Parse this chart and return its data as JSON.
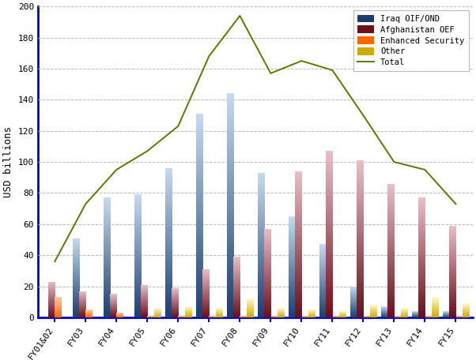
{
  "categories": [
    "FY01&02",
    "FY03",
    "FY04",
    "FY05",
    "FY06",
    "FY07",
    "FY08",
    "FY09",
    "FY10",
    "FY11",
    "FY12",
    "FY13",
    "FY14",
    "FY15"
  ],
  "iraq": [
    0,
    51,
    77,
    79,
    96,
    131,
    144,
    93,
    65,
    47,
    20,
    7,
    4,
    4
  ],
  "afghanistan": [
    23,
    17,
    15,
    21,
    19,
    31,
    39,
    57,
    94,
    107,
    101,
    86,
    77,
    59
  ],
  "enhanced_security": [
    13,
    5,
    3,
    1,
    1,
    1,
    1,
    1,
    1,
    1,
    1,
    1,
    1,
    1
  ],
  "other": [
    0,
    0,
    0,
    6,
    7,
    6,
    12,
    6,
    5,
    4,
    8,
    6,
    13,
    9
  ],
  "total": [
    36,
    73,
    95,
    107,
    123,
    168,
    194,
    157,
    165,
    159,
    130,
    100,
    95,
    73
  ],
  "iraq_top": "#1a3f6f",
  "iraq_bottom": "#c8daf0",
  "afghanistan_top": "#6b0f1a",
  "afghanistan_bottom": "#e8c0c8",
  "enhanced_top": "#ff6600",
  "enhanced_bottom": "#ffccaa",
  "other_top": "#ccaa00",
  "other_bottom": "#fffacc",
  "total_color": "#5a7a00",
  "axis_color": "#0000cc",
  "grid_color": "#bbbbbb",
  "bg_color": "#ffffff",
  "ylabel": "USD billions",
  "ylim": [
    0,
    200
  ],
  "yticks": [
    0,
    20,
    40,
    60,
    80,
    100,
    120,
    140,
    160,
    180,
    200
  ],
  "legend_labels": [
    "Iraq OIF/OND",
    "Afghanistan OEF",
    "Enhanced Security",
    "Other",
    "Total"
  ]
}
